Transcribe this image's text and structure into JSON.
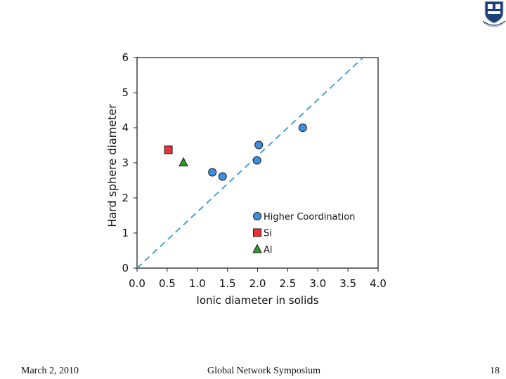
{
  "chart_data": {
    "type": "scatter",
    "xlabel": "Ionic diameter in solids",
    "ylabel": "Hard sphere diameter",
    "xlim": [
      0,
      4
    ],
    "ylim": [
      0,
      6
    ],
    "x_ticks": [
      "0.0",
      "0.5",
      "1.0",
      "1.5",
      "2.0",
      "2.5",
      "3.0",
      "3.5",
      "4.0"
    ],
    "y_ticks": [
      "0",
      "1",
      "2",
      "3",
      "4",
      "5",
      "6"
    ],
    "grid": false,
    "reference_line": {
      "style": "dashed",
      "color": "#4aa3d8",
      "x": [
        0,
        3.75
      ],
      "y": [
        0,
        6
      ]
    },
    "series": [
      {
        "name": "Higher Coordination",
        "marker": "circle",
        "color": "#3d8fe0",
        "points": [
          [
            1.25,
            2.73
          ],
          [
            1.42,
            2.61
          ],
          [
            1.99,
            3.07
          ],
          [
            2.02,
            3.51
          ],
          [
            2.75,
            4.0
          ]
        ]
      },
      {
        "name": "Si",
        "marker": "square",
        "color": "#e8323a",
        "points": [
          [
            0.52,
            3.37
          ]
        ]
      },
      {
        "name": "Al",
        "marker": "triangle",
        "color": "#2a9c2a",
        "points": [
          [
            0.77,
            3.01
          ]
        ]
      }
    ],
    "legend_position": "bottom-right"
  },
  "footer": {
    "date": "March 2, 2010",
    "title": "Global Network Symposium",
    "page": "18"
  },
  "logo": {
    "emblem": "crest-icon",
    "lettering": "LUX ET VERITAS",
    "colors": {
      "shield": "#1c3f7a",
      "accent": "#ffffff"
    }
  }
}
